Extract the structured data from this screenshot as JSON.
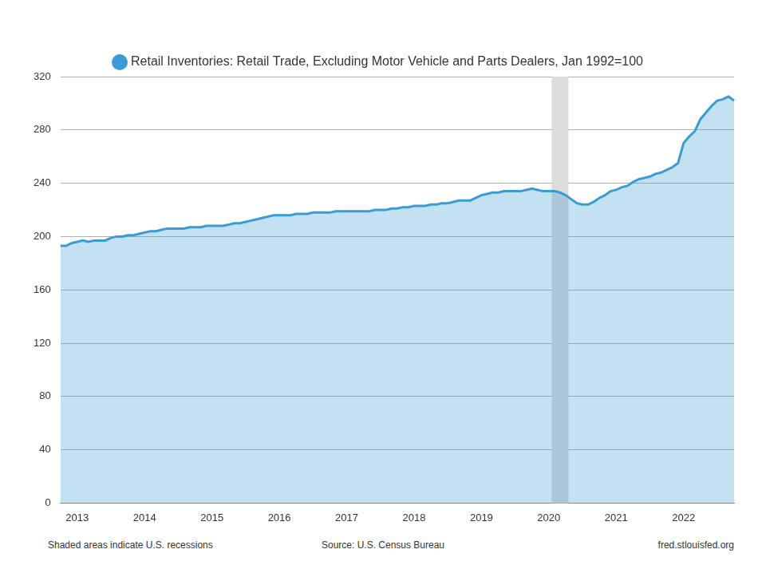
{
  "chart_data": {
    "type": "area",
    "series": [
      {
        "name": "Retail Inventories: Retail Trade, Excluding Motor Vehicle and Parts Dealers, Jan 1992=100",
        "color": "#3a9bd5",
        "values": [
          193,
          193,
          195,
          196,
          197,
          196,
          197,
          197,
          197,
          199,
          200,
          200,
          201,
          201,
          202,
          203,
          204,
          204,
          205,
          206,
          206,
          206,
          206,
          207,
          207,
          207,
          208,
          208,
          208,
          208,
          209,
          210,
          210,
          211,
          212,
          213,
          214,
          215,
          216,
          216,
          216,
          216,
          217,
          217,
          217,
          218,
          218,
          218,
          218,
          219,
          219,
          219,
          219,
          219,
          219,
          219,
          220,
          220,
          220,
          221,
          221,
          222,
          222,
          223,
          223,
          223,
          224,
          224,
          225,
          225,
          226,
          227,
          227,
          227,
          229,
          231,
          232,
          233,
          233,
          234,
          234,
          234,
          234,
          235,
          236,
          235,
          234,
          234,
          234,
          233,
          231,
          228,
          225,
          224,
          224,
          226,
          229,
          231,
          234,
          235,
          237,
          238,
          241,
          243,
          244,
          245,
          247,
          248,
          250,
          252,
          255,
          270,
          275,
          279,
          288,
          293,
          298,
          302,
          303,
          305,
          302
        ]
      }
    ],
    "categories": [
      null,
      null,
      null,
      "2013",
      null,
      null,
      null,
      null,
      null,
      null,
      null,
      null,
      null,
      null,
      null,
      "2014",
      null,
      null,
      null,
      null,
      null,
      null,
      null,
      null,
      null,
      null,
      null,
      "2015",
      null,
      null,
      null,
      null,
      null,
      null,
      null,
      null,
      null,
      null,
      null,
      "2016",
      null,
      null,
      null,
      null,
      null,
      null,
      null,
      null,
      null,
      null,
      null,
      "2017",
      null,
      null,
      null,
      null,
      null,
      null,
      null,
      null,
      null,
      null,
      null,
      "2018",
      null,
      null,
      null,
      null,
      null,
      null,
      null,
      null,
      null,
      null,
      null,
      "2019",
      null,
      null,
      null,
      null,
      null,
      null,
      null,
      null,
      null,
      null,
      null,
      "2020",
      null,
      null,
      null,
      null,
      null,
      null,
      null,
      null,
      null,
      null,
      null,
      "2021",
      null,
      null,
      null,
      null,
      null,
      null,
      null,
      null,
      null,
      null,
      null,
      "2022",
      null,
      null,
      null,
      null,
      null,
      null,
      null,
      null,
      null
    ],
    "recession": [
      false,
      false,
      false,
      false,
      false,
      false,
      false,
      false,
      false,
      false,
      false,
      false,
      false,
      false,
      false,
      false,
      false,
      false,
      false,
      false,
      false,
      false,
      false,
      false,
      false,
      false,
      false,
      false,
      false,
      false,
      false,
      false,
      false,
      false,
      false,
      false,
      false,
      false,
      false,
      false,
      false,
      false,
      false,
      false,
      false,
      false,
      false,
      false,
      false,
      false,
      false,
      false,
      false,
      false,
      false,
      false,
      false,
      false,
      false,
      false,
      false,
      false,
      false,
      false,
      false,
      false,
      false,
      false,
      false,
      false,
      false,
      false,
      false,
      false,
      false,
      false,
      false,
      false,
      false,
      false,
      false,
      false,
      false,
      false,
      false,
      false,
      false,
      false,
      true,
      true,
      true,
      false,
      false,
      false,
      false,
      false,
      false,
      false,
      false,
      false,
      false,
      false,
      false,
      false,
      false,
      false,
      false,
      false,
      false,
      false,
      false,
      false,
      false,
      false,
      false,
      false,
      false,
      false,
      false,
      false,
      false
    ],
    "ylim": [
      0,
      320
    ],
    "yticks": [
      0,
      40,
      80,
      120,
      160,
      200,
      240,
      280,
      320
    ],
    "grid": true,
    "legend": "top",
    "recession_note": "Shaded areas indicate U.S. recessions",
    "source": "Source: U.S. Census Bureau",
    "credit": "fred.stlouisfed.org"
  }
}
